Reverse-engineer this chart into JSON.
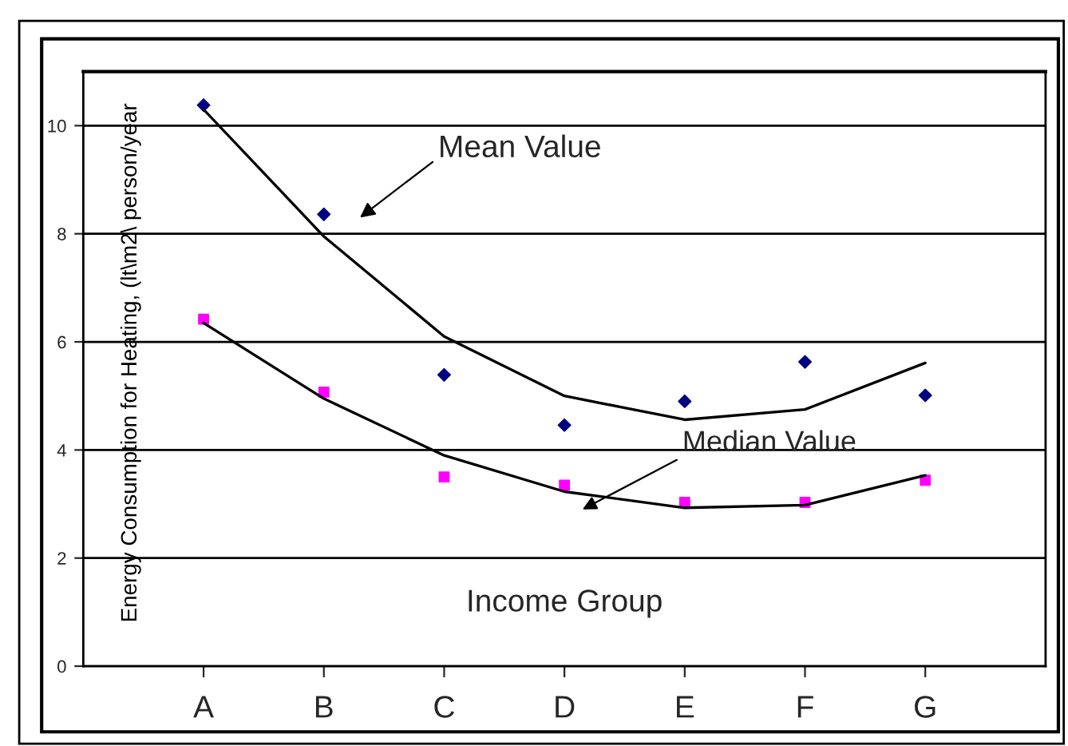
{
  "chart_data": {
    "type": "scatter",
    "xlabel": "Income Group",
    "ylabel": "Energy Consumption for Heating, (lt\\m2\\ person/year",
    "categories": [
      "A",
      "B",
      "C",
      "D",
      "E",
      "F",
      "G"
    ],
    "series": [
      {
        "type": "scatter",
        "color": "#000080",
        "marker": "diamond",
        "values": [
          10.38,
          8.36,
          5.39,
          4.46,
          4.9,
          5.63,
          5.01
        ]
      },
      {
        "type": "scatter",
        "color": "#ff00ff",
        "marker": "square",
        "values": [
          6.42,
          5.07,
          3.5,
          3.35,
          3.03,
          3.03,
          3.44
        ]
      },
      {
        "type": "line",
        "color": "#000000",
        "values": [
          10.3,
          7.95,
          6.1,
          5.0,
          4.56,
          4.75,
          5.61
        ]
      },
      {
        "type": "line",
        "color": "#000000",
        "values": [
          6.35,
          4.95,
          3.9,
          3.23,
          2.93,
          2.98,
          3.53
        ]
      }
    ],
    "ylim": [
      0,
      11
    ],
    "yticks": [
      0,
      2,
      4,
      6,
      8,
      10
    ],
    "grid": "y",
    "annotations": [
      "Mean Value",
      "Median Value"
    ]
  }
}
